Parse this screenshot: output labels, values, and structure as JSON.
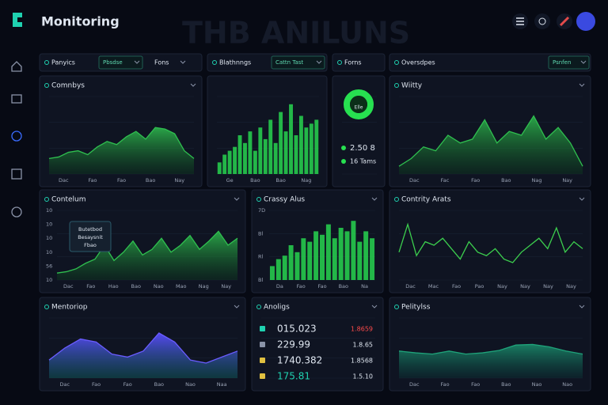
{
  "header": {
    "title": "Monitoring",
    "watermark": "THB ANILUNS"
  },
  "toolbar": [
    {
      "label": "Panyics",
      "dropdown": "Pbsdse",
      "extra": "Fons"
    },
    {
      "label": "Blathnngs",
      "dropdown": "Cattn Tast"
    },
    {
      "label": "Forns"
    },
    {
      "label": "Oversdpes",
      "dropdown": "Psnfen"
    }
  ],
  "panels": [
    {
      "type": "area",
      "title": "Comnbys",
      "color": "#2fbf4f",
      "ylim": [
        0,
        100
      ],
      "values": [
        20,
        22,
        28,
        30,
        25,
        35,
        42,
        38,
        48,
        55,
        45,
        60,
        58,
        52,
        30,
        20
      ],
      "xlabels": [
        "Dac",
        "Fao",
        "Fao",
        "Bao",
        "Nay"
      ]
    },
    {
      "type": "bars",
      "color": "#27d44f",
      "ylim": [
        0,
        100
      ],
      "values": [
        15,
        25,
        30,
        35,
        50,
        40,
        55,
        30,
        60,
        45,
        70,
        40,
        80,
        55,
        90,
        50,
        75,
        60,
        65,
        70
      ],
      "xlabels": [
        "Ge",
        "Bao",
        "Bao",
        "Nag"
      ]
    },
    {
      "type": "donut",
      "center": "Elle",
      "lines": [
        "2.50 8",
        "16 Tams"
      ]
    },
    {
      "type": "area",
      "title": "Wiitty",
      "color": "#2fbf4f",
      "ylim": [
        0,
        100
      ],
      "values": [
        10,
        20,
        35,
        30,
        50,
        40,
        45,
        70,
        40,
        55,
        50,
        75,
        45,
        60,
        40,
        10
      ],
      "xlabels": [
        "Dac",
        "Fac",
        "Fao",
        "Bao",
        "Nag",
        "Nay"
      ]
    },
    {
      "type": "area",
      "title": "Contelum",
      "color": "#2fbf4f",
      "ylim": [
        0,
        50
      ],
      "values": [
        5,
        6,
        8,
        12,
        15,
        25,
        14,
        20,
        28,
        18,
        22,
        30,
        20,
        25,
        32,
        22,
        28,
        35,
        25,
        30
      ],
      "xlabels": [
        "Dac",
        "Fao",
        "Hao",
        "Bao",
        "Nao",
        "Mao",
        "Nag",
        "Nay"
      ],
      "ylabels": [
        "10",
        "10",
        "10",
        "10",
        "56",
        "10"
      ],
      "tooltip": [
        "Butetbod",
        "Besaysnit",
        "Fbao"
      ]
    },
    {
      "type": "bars",
      "title": "Crassy Alus",
      "color": "#27d44f",
      "ylim": [
        0,
        100
      ],
      "values": [
        20,
        30,
        35,
        50,
        40,
        60,
        55,
        70,
        65,
        80,
        60,
        75,
        70,
        85,
        55,
        70,
        60
      ],
      "xlabels": [
        "Da",
        "Fao",
        "Fao",
        "Bao",
        "Na"
      ],
      "ylabels": [
        "7D",
        "Bl",
        "Rl",
        "Bl"
      ]
    },
    {
      "type": "line",
      "title": "Contrity Arats",
      "color": "#3ccf4e",
      "ylim": [
        0,
        100
      ],
      "values": [
        40,
        80,
        35,
        55,
        50,
        60,
        45,
        30,
        55,
        40,
        35,
        45,
        30,
        25,
        40,
        50,
        60,
        45,
        75,
        40,
        55,
        45
      ],
      "xlabels": [
        "Dac",
        "Mac",
        "Fao",
        "Pao",
        "Nay",
        "Nay",
        "Nay",
        "Nay"
      ]
    },
    {
      "type": "area",
      "title": "Mentoriop",
      "color": "#6a5cff",
      "ylim": [
        0,
        100
      ],
      "values": [
        30,
        50,
        65,
        60,
        40,
        35,
        45,
        75,
        60,
        30,
        25,
        35,
        45
      ],
      "xlabels": [
        "Dac",
        "Fao",
        "Fao",
        "Bao",
        "Nao",
        "Naa"
      ]
    },
    {
      "type": "list",
      "title": "Anoligs",
      "rows": [
        [
          "015.023",
          "1.8659"
        ],
        [
          "229.99",
          "1.8.65"
        ],
        [
          "1740.382",
          "1.8568"
        ],
        [
          "175.81",
          "1.5.10"
        ]
      ]
    },
    {
      "type": "area",
      "title": "Pelitylss",
      "color": "#1fa37a",
      "ylim": [
        0,
        100
      ],
      "values": [
        45,
        42,
        40,
        45,
        40,
        42,
        46,
        55,
        56,
        52,
        45,
        40
      ],
      "xlabels": [
        "Dac",
        "Fao",
        "Fao",
        "Bao",
        "Nao",
        "Nao"
      ]
    }
  ]
}
